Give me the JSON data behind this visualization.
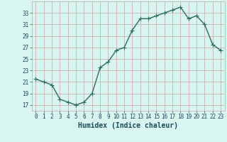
{
  "x": [
    0,
    1,
    2,
    3,
    4,
    5,
    6,
    7,
    8,
    9,
    10,
    11,
    12,
    13,
    14,
    15,
    16,
    17,
    18,
    19,
    20,
    21,
    22,
    23
  ],
  "y": [
    21.5,
    21.0,
    20.5,
    18.0,
    17.5,
    17.0,
    17.5,
    19.0,
    23.5,
    24.5,
    26.5,
    27.0,
    30.0,
    32.0,
    32.0,
    32.5,
    33.0,
    33.5,
    34.0,
    32.0,
    32.5,
    31.0,
    27.5,
    26.5
  ],
  "line_color": "#2e6b5e",
  "marker": "+",
  "markersize": 4,
  "linewidth": 1.0,
  "bg_color": "#d8f5f0",
  "grid_color": "#c4a8a8",
  "xlabel": "Humidex (Indice chaleur)",
  "xlim": [
    -0.5,
    23.5
  ],
  "ylim": [
    16,
    35
  ],
  "yticks": [
    17,
    19,
    21,
    23,
    25,
    27,
    29,
    31,
    33
  ],
  "xticks": [
    0,
    1,
    2,
    3,
    4,
    5,
    6,
    7,
    8,
    9,
    10,
    11,
    12,
    13,
    14,
    15,
    16,
    17,
    18,
    19,
    20,
    21,
    22,
    23
  ],
  "tick_label_fontsize": 5.5,
  "xlabel_fontsize": 7.0,
  "tick_color": "#1a4a5e",
  "xlabel_color": "#1a4a5e"
}
